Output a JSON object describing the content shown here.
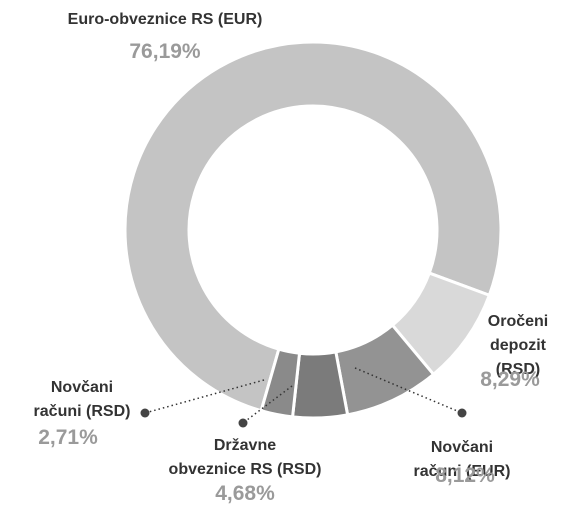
{
  "chart_data": {
    "type": "donut",
    "categories": [
      "Euro-obveznice RS (EUR)",
      "Oročeni\ndepozit (RSD)",
      "Novčani računi (EUR)",
      "Državne\nobveznice RS (RSD)",
      "Novčani\nračuni (RSD)"
    ],
    "values": [
      76.19,
      8.29,
      8.12,
      4.68,
      2.71
    ],
    "value_labels": [
      "76,19%",
      "8,29%",
      "8,12%",
      "4,68%",
      "2,71%"
    ],
    "colors": [
      "#c4c4c4",
      "#d9d9d9",
      "#939393",
      "#7b7b7b",
      "#8a8a8a"
    ]
  }
}
